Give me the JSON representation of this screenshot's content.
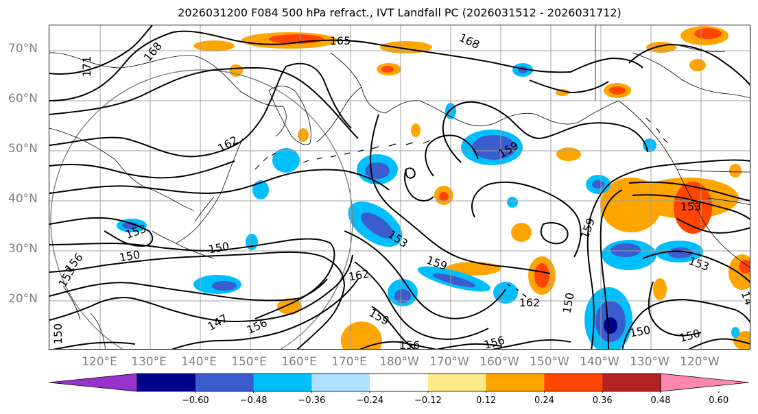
{
  "title": "2026031200 F084 500 hPa refract., IVT Landfall PC (2026031512 - 2026031712)",
  "lat_labels": [
    "70°N",
    "60°N",
    "50°N",
    "40°N",
    "30°N",
    "20°N"
  ],
  "lon_labels": [
    "120°E",
    "130°E",
    "140°E",
    "150°E",
    "160°E",
    "170°E",
    "180°W",
    "170°W",
    "160°W",
    "150°W",
    "140°W",
    "130°W",
    "120°W"
  ],
  "contour_labels": [
    "171",
    "168",
    "165",
    "168",
    "162",
    "159",
    "153",
    "153",
    "159",
    "153",
    "150",
    "156",
    "150",
    "153",
    "162",
    "159",
    "147",
    "156",
    "159",
    "156",
    "162",
    "156",
    "150",
    "153",
    "150",
    "150",
    "150",
    "14"
  ],
  "colorbar": {
    "ticks": [
      "−0.60",
      "−0.48",
      "−0.36",
      "−0.24",
      "−0.12",
      "0.12",
      "0.24",
      "0.36",
      "0.48",
      "0.60"
    ],
    "colors": [
      "#9932cc",
      "#00008b",
      "#3a5ccc",
      "#00bfff",
      "#b0e0ff",
      "#ffffff",
      "#ffea8a",
      "#ffa500",
      "#ff4500",
      "#b22222",
      "#ff86b0"
    ]
  },
  "colors": {
    "gridline": "#a0a0a0",
    "coastline": "#000000",
    "contour": "#000000",
    "range_ring": "#808080",
    "label_gray": "#808080"
  }
}
